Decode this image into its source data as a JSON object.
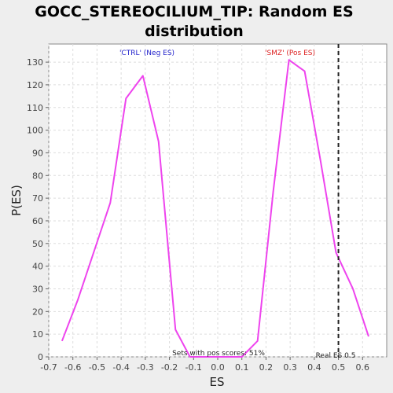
{
  "chart_data": {
    "type": "line",
    "title_line1": "GOCC_STEREOCILIUM_TIP: Random ES",
    "title_line2": "distribution",
    "xlabel": "ES",
    "ylabel": "P(ES)",
    "xlim": [
      -0.7,
      0.7
    ],
    "ylim": [
      0,
      138
    ],
    "x_ticks": [
      "-0.7",
      "-0.6",
      "-0.5",
      "-0.4",
      "-0.3",
      "-0.2",
      "-0.1",
      "0.0",
      "0.1",
      "0.2",
      "0.3",
      "0.4",
      "0.5",
      "0.6"
    ],
    "x_tick_values": [
      -0.7,
      -0.6,
      -0.5,
      -0.4,
      -0.3,
      -0.2,
      -0.1,
      0.0,
      0.1,
      0.2,
      0.3,
      0.4,
      0.5,
      0.6
    ],
    "y_ticks": [
      0,
      10,
      20,
      30,
      40,
      50,
      60,
      70,
      80,
      90,
      100,
      110,
      120,
      130
    ],
    "grid": true,
    "series": [
      {
        "color": "#ee44ee",
        "points": [
          [
            -0.645,
            7
          ],
          [
            -0.58,
            25
          ],
          [
            -0.445,
            68
          ],
          [
            -0.38,
            114
          ],
          [
            -0.31,
            124
          ],
          [
            -0.245,
            95
          ],
          [
            -0.175,
            12
          ],
          [
            -0.115,
            0
          ],
          [
            0.0,
            0
          ],
          [
            0.1,
            0
          ],
          [
            0.165,
            7
          ],
          [
            0.23,
            73
          ],
          [
            0.295,
            131
          ],
          [
            0.36,
            126
          ],
          [
            0.425,
            87
          ],
          [
            0.49,
            46
          ],
          [
            0.56,
            30
          ],
          [
            0.625,
            9
          ]
        ]
      }
    ],
    "annotations": {
      "neg_label": "'CTRL' (Neg ES)",
      "neg_color": "#2222cc",
      "pos_label": "'SMZ' (Pos ES)",
      "pos_color": "#dd2222",
      "pos_scores_text": "Sets with pos scores: 51%",
      "real_es_text": "Real ES 0.5",
      "real_es_value": 0.5
    }
  }
}
